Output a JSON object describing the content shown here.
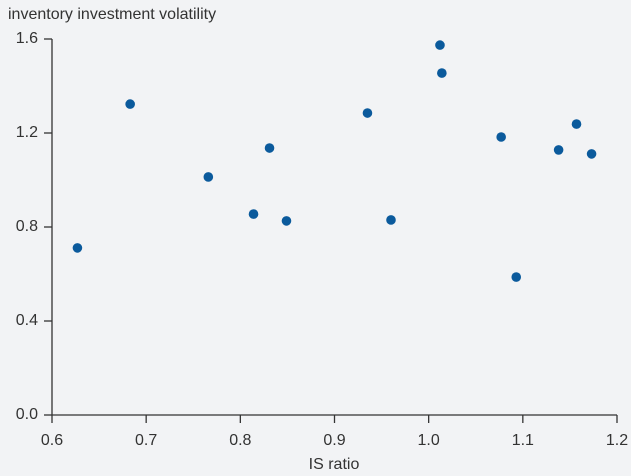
{
  "chart_data": {
    "type": "scatter",
    "y_axis_label": "inventory investment volatility",
    "x_axis_label": "IS ratio",
    "color": "#0b5a9c",
    "x": [
      0.627,
      0.683,
      0.766,
      0.814,
      0.831,
      0.849,
      0.935,
      0.96,
      1.012,
      1.014,
      1.077,
      1.093,
      1.138,
      1.157,
      1.173
    ],
    "values": [
      0.711,
      1.323,
      1.013,
      0.855,
      1.136,
      0.826,
      1.285,
      0.83,
      1.574,
      1.455,
      1.183,
      0.587,
      1.128,
      1.238,
      1.111
    ],
    "xlim": [
      0.6,
      1.2
    ],
    "xticks": [
      0.6,
      0.7,
      0.8,
      0.9,
      {
        "value": 1,
        "label": "1.0"
      },
      1.1,
      1.2
    ],
    "ylim": [
      0,
      1.6
    ],
    "yticks": [
      {
        "value": 0,
        "label": "0.0"
      },
      0.4,
      0.8,
      1.2,
      1.6
    ],
    "grid": false
  }
}
